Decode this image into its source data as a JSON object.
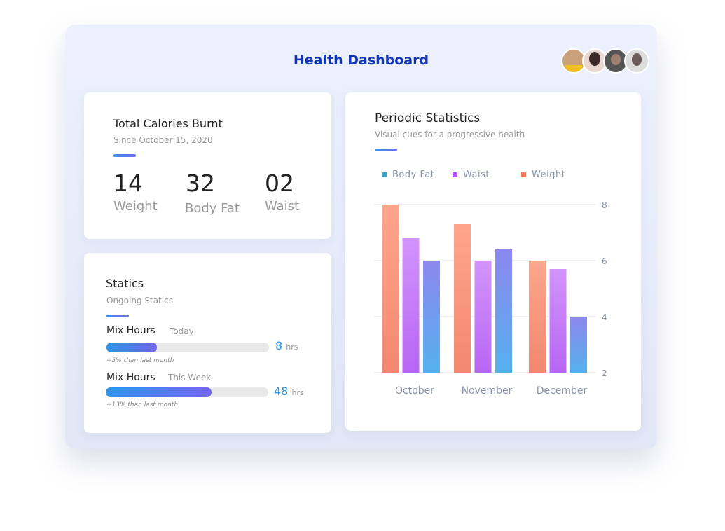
{
  "header": {
    "title": "Health Dashboard",
    "avatars": [
      "user-1",
      "user-2",
      "user-3",
      "user-4"
    ]
  },
  "calories": {
    "title": "Total Calories Burnt",
    "subtitle": "Since October 15, 2020",
    "stats": [
      {
        "value": "14",
        "label": "Weight"
      },
      {
        "value": "32",
        "label": "Body Fat"
      },
      {
        "value": "02",
        "label": "Waist"
      }
    ]
  },
  "statics": {
    "title": "Statics",
    "subtitle": "Ongoing Statics",
    "items": [
      {
        "label": "Mix Hours",
        "period": "Today",
        "value": "8",
        "unit": "hrs",
        "progress": 0.31,
        "note": "+5% than last month"
      },
      {
        "label": "Mix Hours",
        "period": "This Week",
        "value": "48",
        "unit": "hrs",
        "progress": 0.65,
        "note": "+13% than last month"
      }
    ]
  },
  "periodic": {
    "title": "Periodic Statistics",
    "subtitle": "Visual cues for a progressive health"
  },
  "chart_data": {
    "type": "bar",
    "categories": [
      "October",
      "November",
      "December"
    ],
    "series": [
      {
        "name": "Weight",
        "color": "#f4785a",
        "values": [
          8,
          7.3,
          6
        ]
      },
      {
        "name": "Waist",
        "color": "#b157f4",
        "values": [
          6.8,
          6,
          5.7
        ]
      },
      {
        "name": "Body Fat",
        "color": "#2ea6d8",
        "values": [
          6,
          6.4,
          4
        ]
      }
    ],
    "legend": [
      "Body Fat",
      "Waist",
      "Weight"
    ],
    "ylim": [
      2,
      8
    ],
    "yticks": [
      "2",
      "4",
      "6",
      "8"
    ],
    "grid": true,
    "legend_position": "top-left",
    "yaxis_side": "right"
  }
}
